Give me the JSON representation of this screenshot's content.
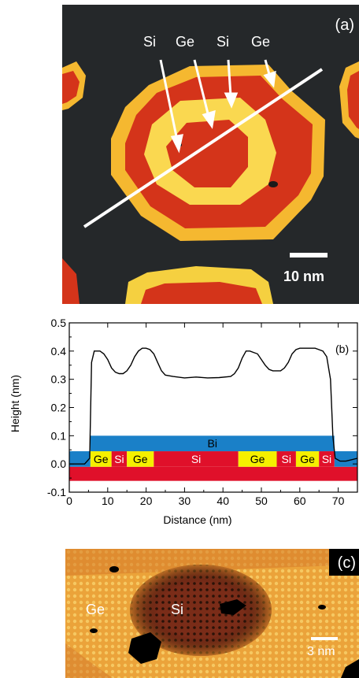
{
  "panel_a": {
    "letter": "(a)",
    "labels": [
      "Si",
      "Ge",
      "Si",
      "Ge"
    ],
    "scale_bar": "10 nm",
    "colors": {
      "background": "#25282a",
      "si": "#d4341a",
      "ge": "#f5b830",
      "ge_light": "#fad850",
      "line": "#ffffff"
    }
  },
  "panel_c": {
    "letter": "(c)",
    "label_ge": "Ge",
    "label_si": "Si",
    "scale_bar": "3 nm"
  },
  "chart_data": {
    "type": "line",
    "panel_letter": "(b)",
    "xlabel": "Distance (nm)",
    "ylabel": "Height (nm)",
    "xlim": [
      0,
      75
    ],
    "ylim": [
      -0.1,
      0.5
    ],
    "x_ticks": [
      "0",
      "10",
      "20",
      "30",
      "40",
      "50",
      "60",
      "70"
    ],
    "y_ticks": [
      "-0.1",
      "0.0",
      "0.1",
      "0.2",
      "0.3",
      "0.4",
      "0.5"
    ],
    "series": [
      {
        "x": [
          0,
          2,
          4,
          5.3,
          5.8,
          6.5,
          8,
          9,
          10,
          11,
          12,
          13,
          14,
          15,
          16,
          17,
          18,
          19,
          20,
          21,
          22,
          23,
          24,
          25,
          27,
          30,
          33,
          36,
          39,
          42,
          43,
          44,
          45,
          46,
          47,
          48,
          49,
          50,
          51,
          52,
          53,
          54,
          55,
          56,
          57,
          58,
          59,
          60,
          61,
          62,
          63,
          64,
          65,
          66,
          67,
          68,
          68.6,
          69.2,
          70.5,
          72,
          75
        ],
        "values": [
          0.0,
          0.0,
          0.0,
          0.02,
          0.36,
          0.4,
          0.4,
          0.39,
          0.37,
          0.34,
          0.325,
          0.32,
          0.32,
          0.33,
          0.35,
          0.38,
          0.4,
          0.41,
          0.41,
          0.405,
          0.39,
          0.36,
          0.33,
          0.315,
          0.31,
          0.305,
          0.308,
          0.305,
          0.306,
          0.31,
          0.32,
          0.34,
          0.375,
          0.4,
          0.4,
          0.395,
          0.39,
          0.37,
          0.35,
          0.335,
          0.33,
          0.33,
          0.33,
          0.34,
          0.36,
          0.39,
          0.405,
          0.41,
          0.41,
          0.41,
          0.41,
          0.41,
          0.405,
          0.4,
          0.38,
          0.3,
          0.1,
          0.02,
          0.01,
          0.01,
          0.02
        ]
      }
    ],
    "schematic": {
      "bi_layer": {
        "label": "Bi",
        "x0": 5.5,
        "x1": 69,
        "y0": 0.045,
        "y1": 0.1,
        "color": "#1a80c8"
      },
      "base_layer": {
        "x0": 0,
        "x1": 75,
        "y0": -0.06,
        "y1": -0.01,
        "color": "#e0102a"
      },
      "segments": [
        {
          "label": "Ge",
          "x0": 5.5,
          "x1": 11,
          "color": "#f5f000"
        },
        {
          "label": "Si",
          "x0": 11,
          "x1": 15,
          "color": "#e0102a"
        },
        {
          "label": "Ge",
          "x0": 15,
          "x1": 22,
          "color": "#f5f000"
        },
        {
          "label": "Si",
          "x0": 22,
          "x1": 44,
          "color": "#e0102a"
        },
        {
          "label": "Ge",
          "x0": 44,
          "x1": 54,
          "color": "#f5f000"
        },
        {
          "label": "Si",
          "x0": 54,
          "x1": 59,
          "color": "#e0102a"
        },
        {
          "label": "Ge",
          "x0": 59,
          "x1": 65,
          "color": "#f5f000"
        },
        {
          "label": "Si",
          "x0": 65,
          "x1": 69,
          "color": "#e0102a"
        }
      ],
      "ge_si_y0": -0.01,
      "ge_si_y1": 0.045,
      "side_ge": [
        {
          "x0": 0,
          "x1": 5.5
        },
        {
          "x0": 69,
          "x1": 75
        }
      ]
    }
  }
}
